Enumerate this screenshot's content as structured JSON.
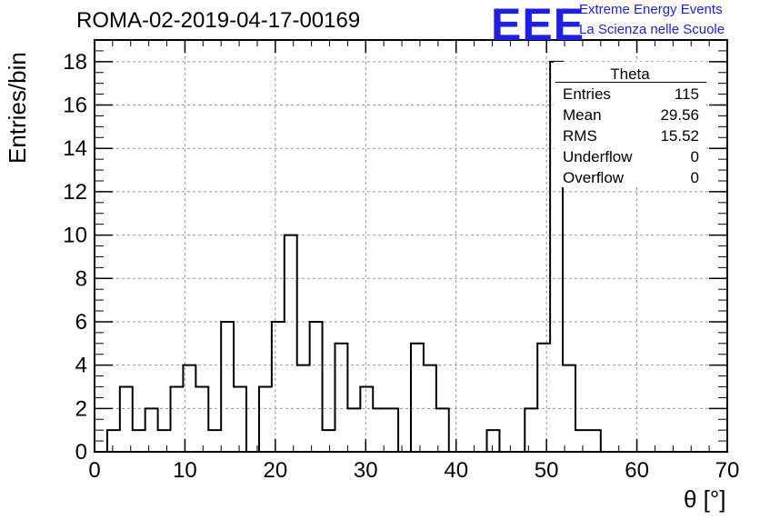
{
  "header": {
    "run_title": "ROMA-02-2019-04-17-00169",
    "logo_text": "EEE",
    "logo_line1": "Extreme Energy Events",
    "logo_line2": "La Scienza nelle Scuole",
    "logo_color": "#1f1fe0"
  },
  "stats": {
    "title": "Theta",
    "rows": [
      {
        "label": "Entries",
        "value": "115"
      },
      {
        "label": "Mean",
        "value": "29.56"
      },
      {
        "label": "RMS",
        "value": "15.52"
      },
      {
        "label": "Underflow",
        "value": "0"
      },
      {
        "label": "Overflow",
        "value": "0"
      }
    ]
  },
  "chart_data": {
    "type": "bar",
    "histogram": true,
    "xlabel": "θ [°]",
    "ylabel": "Entries/bin",
    "xlim": [
      0,
      70
    ],
    "ylim": [
      0,
      19
    ],
    "grid": true,
    "bin_edges": [
      1.4,
      2.8,
      4.2,
      5.6,
      7.0,
      8.4,
      9.8,
      11.2,
      12.6,
      14.0,
      15.4,
      16.8,
      18.2,
      19.6,
      21.0,
      22.4,
      23.8,
      25.2,
      26.6,
      28.0,
      29.4,
      30.8,
      32.2,
      33.6,
      35.0,
      36.4,
      37.8,
      39.2,
      40.6,
      42.0,
      43.4,
      44.8,
      46.2,
      47.6,
      49.0,
      50.4,
      51.8,
      53.2,
      54.6,
      56.0
    ],
    "values": [
      1,
      3,
      1,
      2,
      1,
      3,
      4,
      3,
      1,
      6,
      3,
      0,
      3,
      6,
      10,
      4,
      6,
      1,
      5,
      2,
      3,
      2,
      2,
      0,
      5,
      4,
      2,
      0,
      0,
      0,
      1,
      0,
      0,
      2,
      5,
      18,
      4,
      1,
      1
    ],
    "x_ticks": [
      0,
      10,
      20,
      30,
      40,
      50,
      60,
      70
    ],
    "y_ticks": [
      0,
      2,
      4,
      6,
      8,
      10,
      12,
      14,
      16,
      18
    ]
  }
}
